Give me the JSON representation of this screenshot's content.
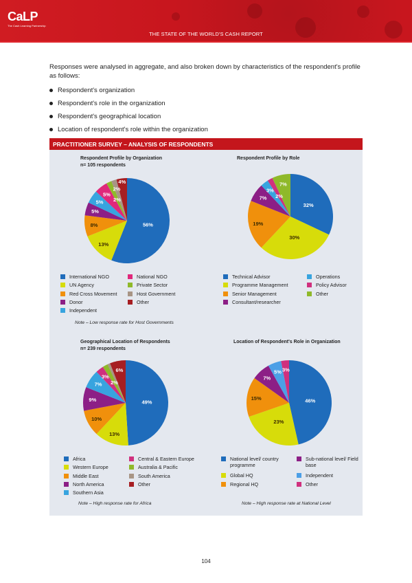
{
  "header": {
    "logo_text": "CaLP",
    "logo_subtext": "The Cash Learning Partnership",
    "report_title": "THE STATE OF THE WORLD'S CASH REPORT"
  },
  "intro": "Responses were analysed in aggregate, and also broken down by characteristics of the respondent's profile as follows:",
  "bullets": [
    "Respondent's organization",
    "Respondent's role in the organization",
    "Respondent's geographical location",
    "Location of respondent's role within the organization"
  ],
  "panel_title": "PRACTITIONER SURVEY – ANALYSIS OF RESPONDENTS",
  "chart_data": [
    {
      "type": "pie",
      "title": "Respondent Profile by Organization",
      "subtitle": "n= 105 respondents",
      "labels": [
        "International NGO",
        "UN Agency",
        "Red Cross Movement",
        "Donor",
        "Independent",
        "National NGO",
        "Private Sector",
        "Host Government",
        "Other"
      ],
      "values": [
        56,
        13,
        8,
        5,
        5,
        5,
        2,
        2,
        4
      ],
      "data_labels": [
        "56%",
        "13%",
        "8%",
        "5%",
        "5%",
        "5%",
        "2%",
        "2%",
        "4%"
      ],
      "colors": [
        "#1f6cbb",
        "#d7dc0a",
        "#f0900c",
        "#8c1f86",
        "#38a4df",
        "#e0287b",
        "#8fb92a",
        "#a89585",
        "#a61e22"
      ],
      "note": "Note – Low response rate for Host Governments"
    },
    {
      "type": "pie",
      "title": "Respondent Profile by Role",
      "subtitle": "",
      "labels": [
        "Technical Advisor",
        "Programme Management",
        "Senior Management",
        "Consultant/researcher",
        "Operations",
        "Policy Advisor",
        "Other"
      ],
      "values": [
        32,
        30,
        19,
        7,
        3,
        2,
        7
      ],
      "data_labels": [
        "32%",
        "30%",
        "19%",
        "7%",
        "3%",
        "2%",
        "7%"
      ],
      "colors": [
        "#1f6cbb",
        "#d7dc0a",
        "#f0900c",
        "#8c1f86",
        "#38a4df",
        "#d0307e",
        "#8fb92a"
      ],
      "note": ""
    },
    {
      "type": "pie",
      "title": "Geographical Location of Respondents",
      "subtitle": "n= 239 respondents",
      "labels": [
        "Africa",
        "Western Europe",
        "Middle East",
        "North America",
        "Southern Asia",
        "Central & Eastern Europe",
        "Australia & Pacific",
        "South America",
        "Other"
      ],
      "values": [
        49,
        13,
        10,
        9,
        7,
        3,
        2,
        1,
        6
      ],
      "data_labels": [
        "49%",
        "13%",
        "10%",
        "9%",
        "7%",
        "3%",
        "2%",
        "",
        "6%"
      ],
      "colors": [
        "#1f6cbb",
        "#d7dc0a",
        "#f0900c",
        "#8c1f86",
        "#38a4df",
        "#d0307e",
        "#8fb92a",
        "#a89585",
        "#a61e22"
      ],
      "note": "Note – High response rate for Africa"
    },
    {
      "type": "pie",
      "title": "Location of Respondent's Role in Organization",
      "subtitle": "",
      "labels": [
        "National level/ country programme",
        "Global HQ",
        "Regional HQ",
        "Sub-national level/ Field base",
        "Independent",
        "Other"
      ],
      "values": [
        46,
        23,
        15,
        7,
        5,
        3
      ],
      "data_labels": [
        "46%",
        "23%",
        "15%",
        "7%",
        "5%",
        "3%"
      ],
      "colors": [
        "#1f6cbb",
        "#d7dc0a",
        "#f0900c",
        "#8c1f86",
        "#4c9fe6",
        "#d0307e"
      ],
      "note": "Note – High response rate at National Level"
    }
  ],
  "page_number": "104"
}
